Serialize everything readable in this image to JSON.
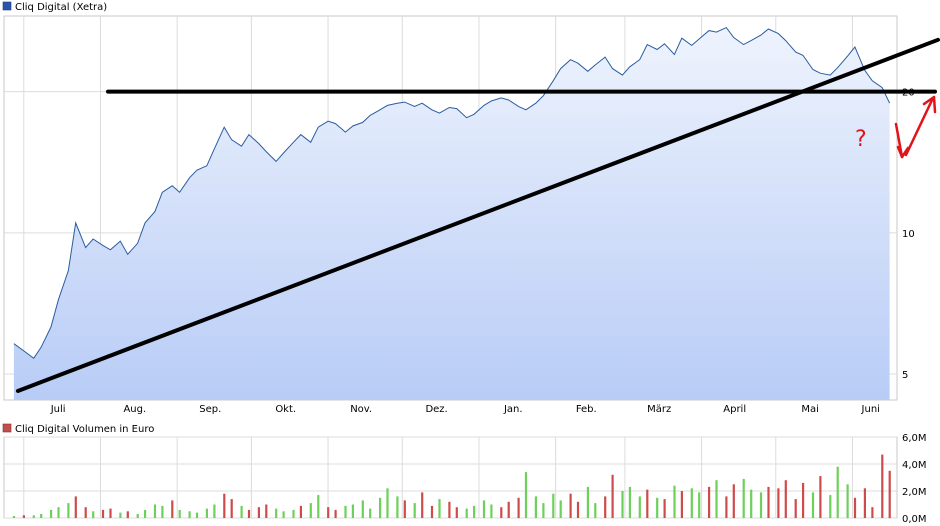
{
  "chart_data": [
    {
      "type": "area",
      "title": "Cliq Digital (Xetra)",
      "colors": {
        "line": "#2a5d9f",
        "fill_top": "#eef3fd",
        "fill_bottom": "#b8ccf6",
        "grid": "#dcdcdc",
        "annotation_black": "#000000",
        "annotation_red": "#e2131a"
      },
      "x_tick_labels": [
        "Juli",
        "Aug.",
        "Sep.",
        "Okt.",
        "Nov.",
        "Dez.",
        "Jan.",
        "Feb.",
        "März",
        "April",
        "Mai",
        "Juni"
      ],
      "y_tick_labels": [
        "5",
        "10",
        "20"
      ],
      "y_scale": "log",
      "ylim": [
        4.4,
        29
      ],
      "grid": true,
      "series": [
        {
          "x": [
            "2022-06-27",
            "2022-07-01",
            "2022-07-05",
            "2022-07-08",
            "2022-07-12",
            "2022-07-15",
            "2022-07-19",
            "2022-07-22",
            "2022-07-26",
            "2022-07-29",
            "2022-08-02",
            "2022-08-05",
            "2022-08-09",
            "2022-08-12",
            "2022-08-16",
            "2022-08-19",
            "2022-08-23",
            "2022-08-26",
            "2022-08-30",
            "2022-09-02",
            "2022-09-06",
            "2022-09-09",
            "2022-09-13",
            "2022-09-16",
            "2022-09-20",
            "2022-09-23",
            "2022-09-27",
            "2022-09-30",
            "2022-10-04",
            "2022-10-07",
            "2022-10-11",
            "2022-10-14",
            "2022-10-18",
            "2022-10-21",
            "2022-10-25",
            "2022-10-28",
            "2022-11-01",
            "2022-11-04",
            "2022-11-08",
            "2022-11-11",
            "2022-11-15",
            "2022-11-18",
            "2022-11-22",
            "2022-11-25",
            "2022-11-29",
            "2022-12-02",
            "2022-12-06",
            "2022-12-09",
            "2022-12-13",
            "2022-12-16",
            "2022-12-20",
            "2022-12-23",
            "2022-12-27",
            "2022-12-30",
            "2023-01-03",
            "2023-01-06",
            "2023-01-10",
            "2023-01-13",
            "2023-01-17",
            "2023-01-20",
            "2023-01-24",
            "2023-01-27",
            "2023-01-31",
            "2023-02-03",
            "2023-02-07",
            "2023-02-10",
            "2023-02-14",
            "2023-02-17",
            "2023-02-21",
            "2023-02-24",
            "2023-02-28",
            "2023-03-03",
            "2023-03-07",
            "2023-03-10",
            "2023-03-14",
            "2023-03-17",
            "2023-03-21",
            "2023-03-24",
            "2023-03-28",
            "2023-03-31",
            "2023-04-04",
            "2023-04-07",
            "2023-04-11",
            "2023-04-14",
            "2023-04-18",
            "2023-04-21",
            "2023-04-25",
            "2023-04-28",
            "2023-05-02",
            "2023-05-05",
            "2023-05-09",
            "2023-05-12",
            "2023-05-16",
            "2023-05-19",
            "2023-05-23",
            "2023-05-26",
            "2023-05-30",
            "2023-06-02",
            "2023-06-06",
            "2023-06-09",
            "2023-06-13",
            "2023-06-16"
          ],
          "values": [
            5.8,
            5.6,
            5.4,
            5.7,
            6.3,
            7.2,
            8.3,
            10.5,
            9.3,
            9.7,
            9.4,
            9.2,
            9.6,
            9.0,
            9.5,
            10.5,
            11.1,
            12.2,
            12.6,
            12.2,
            13.1,
            13.6,
            13.9,
            15.1,
            16.8,
            15.8,
            15.3,
            16.2,
            15.5,
            14.9,
            14.2,
            14.8,
            15.6,
            16.2,
            15.6,
            16.8,
            17.3,
            17.1,
            16.4,
            16.9,
            17.2,
            17.8,
            18.3,
            18.7,
            18.9,
            19.0,
            18.6,
            18.9,
            18.3,
            18.0,
            18.5,
            18.4,
            17.6,
            17.9,
            18.7,
            19.1,
            19.4,
            19.2,
            18.6,
            18.3,
            18.9,
            19.6,
            21.1,
            22.4,
            23.4,
            23.0,
            22.1,
            22.8,
            23.7,
            22.4,
            21.7,
            22.6,
            23.4,
            25.2,
            24.6,
            25.3,
            24.0,
            26.0,
            25.1,
            25.9,
            27.0,
            26.8,
            27.4,
            26.1,
            25.2,
            25.7,
            26.4,
            27.2,
            26.6,
            25.7,
            24.3,
            23.9,
            22.3,
            21.9,
            21.7,
            22.5,
            23.8,
            24.9,
            22.2,
            21.1,
            20.4,
            18.9
          ]
        }
      ],
      "annotations": {
        "support_line_level": 20,
        "trend_line": {
          "from": [
            "2022-06-27",
            4.6
          ],
          "to": [
            "2023-06-19",
            25.8
          ]
        },
        "question_mark": "?"
      }
    },
    {
      "type": "bar",
      "title": "Cliq Digital Volumen in Euro",
      "y_tick_labels": [
        "0,0M",
        "2,0M",
        "4,0M",
        "6,0M"
      ],
      "ylim": [
        0,
        6
      ],
      "unit": "M",
      "up_color": "#6dd05a",
      "down_color": "#cf4b4b",
      "grid": true,
      "series": [
        {
          "x": [
            "2022-06-27",
            "2022-07-01",
            "2022-07-05",
            "2022-07-08",
            "2022-07-12",
            "2022-07-15",
            "2022-07-19",
            "2022-07-22",
            "2022-07-26",
            "2022-07-29",
            "2022-08-02",
            "2022-08-05",
            "2022-08-09",
            "2022-08-12",
            "2022-08-16",
            "2022-08-19",
            "2022-08-23",
            "2022-08-26",
            "2022-08-30",
            "2022-09-02",
            "2022-09-06",
            "2022-09-09",
            "2022-09-13",
            "2022-09-16",
            "2022-09-20",
            "2022-09-23",
            "2022-09-27",
            "2022-09-30",
            "2022-10-04",
            "2022-10-07",
            "2022-10-11",
            "2022-10-14",
            "2022-10-18",
            "2022-10-21",
            "2022-10-25",
            "2022-10-28",
            "2022-11-01",
            "2022-11-04",
            "2022-11-08",
            "2022-11-11",
            "2022-11-15",
            "2022-11-18",
            "2022-11-22",
            "2022-11-25",
            "2022-11-29",
            "2022-12-02",
            "2022-12-06",
            "2022-12-09",
            "2022-12-13",
            "2022-12-16",
            "2022-12-20",
            "2022-12-23",
            "2022-12-27",
            "2022-12-30",
            "2023-01-03",
            "2023-01-06",
            "2023-01-10",
            "2023-01-13",
            "2023-01-17",
            "2023-01-20",
            "2023-01-24",
            "2023-01-27",
            "2023-01-31",
            "2023-02-03",
            "2023-02-07",
            "2023-02-10",
            "2023-02-14",
            "2023-02-17",
            "2023-02-21",
            "2023-02-24",
            "2023-02-28",
            "2023-03-03",
            "2023-03-07",
            "2023-03-10",
            "2023-03-14",
            "2023-03-17",
            "2023-03-21",
            "2023-03-24",
            "2023-03-28",
            "2023-03-31",
            "2023-04-04",
            "2023-04-07",
            "2023-04-11",
            "2023-04-14",
            "2023-04-18",
            "2023-04-21",
            "2023-04-25",
            "2023-04-28",
            "2023-05-02",
            "2023-05-05",
            "2023-05-09",
            "2023-05-12",
            "2023-05-16",
            "2023-05-19",
            "2023-05-23",
            "2023-05-26",
            "2023-05-30",
            "2023-06-02",
            "2023-06-06",
            "2023-06-09",
            "2023-06-13",
            "2023-06-16"
          ],
          "values": [
            0.15,
            0.2,
            0.2,
            0.3,
            0.6,
            0.8,
            1.1,
            1.6,
            0.8,
            0.5,
            0.6,
            0.7,
            0.4,
            0.5,
            0.3,
            0.6,
            1.0,
            0.9,
            1.3,
            0.6,
            0.5,
            0.4,
            0.7,
            1.0,
            1.8,
            1.4,
            0.9,
            0.6,
            0.8,
            1.0,
            0.7,
            0.5,
            0.6,
            0.9,
            1.1,
            1.7,
            0.8,
            0.6,
            0.9,
            1.0,
            1.3,
            0.7,
            1.5,
            2.2,
            1.6,
            1.3,
            1.1,
            1.9,
            0.9,
            1.4,
            1.2,
            0.8,
            0.7,
            0.9,
            1.3,
            1.0,
            0.8,
            1.2,
            1.5,
            3.4,
            1.6,
            1.1,
            1.8,
            1.3,
            1.8,
            1.2,
            2.3,
            1.1,
            1.6,
            3.2,
            2.0,
            2.3,
            1.6,
            2.1,
            1.5,
            1.4,
            2.4,
            2.0,
            2.2,
            1.9,
            2.3,
            2.8,
            1.6,
            2.5,
            2.9,
            2.1,
            1.9,
            2.3,
            2.2,
            2.8,
            1.4,
            2.6,
            1.9,
            3.1,
            1.7,
            3.8,
            2.5,
            1.5,
            2.2,
            0.8,
            4.7,
            3.5
          ],
          "direction": [
            "u",
            "d",
            "u",
            "u",
            "u",
            "u",
            "u",
            "d",
            "d",
            "u",
            "d",
            "d",
            "u",
            "d",
            "u",
            "u",
            "u",
            "u",
            "d",
            "u",
            "u",
            "u",
            "u",
            "u",
            "d",
            "d",
            "u",
            "d",
            "d",
            "d",
            "u",
            "u",
            "u",
            "d",
            "u",
            "u",
            "d",
            "d",
            "u",
            "u",
            "u",
            "u",
            "u",
            "u",
            "u",
            "d",
            "u",
            "d",
            "d",
            "u",
            "d",
            "d",
            "u",
            "u",
            "u",
            "u",
            "d",
            "d",
            "d",
            "u",
            "u",
            "u",
            "u",
            "u",
            "d",
            "d",
            "u",
            "u",
            "d",
            "d",
            "u",
            "u",
            "u",
            "d",
            "u",
            "d",
            "u",
            "d",
            "u",
            "u",
            "d",
            "u",
            "d",
            "d",
            "u",
            "u",
            "u",
            "d",
            "d",
            "d",
            "d",
            "d",
            "u",
            "d",
            "u",
            "u",
            "u",
            "d",
            "d",
            "d",
            "d",
            "d"
          ]
        }
      ]
    }
  ]
}
